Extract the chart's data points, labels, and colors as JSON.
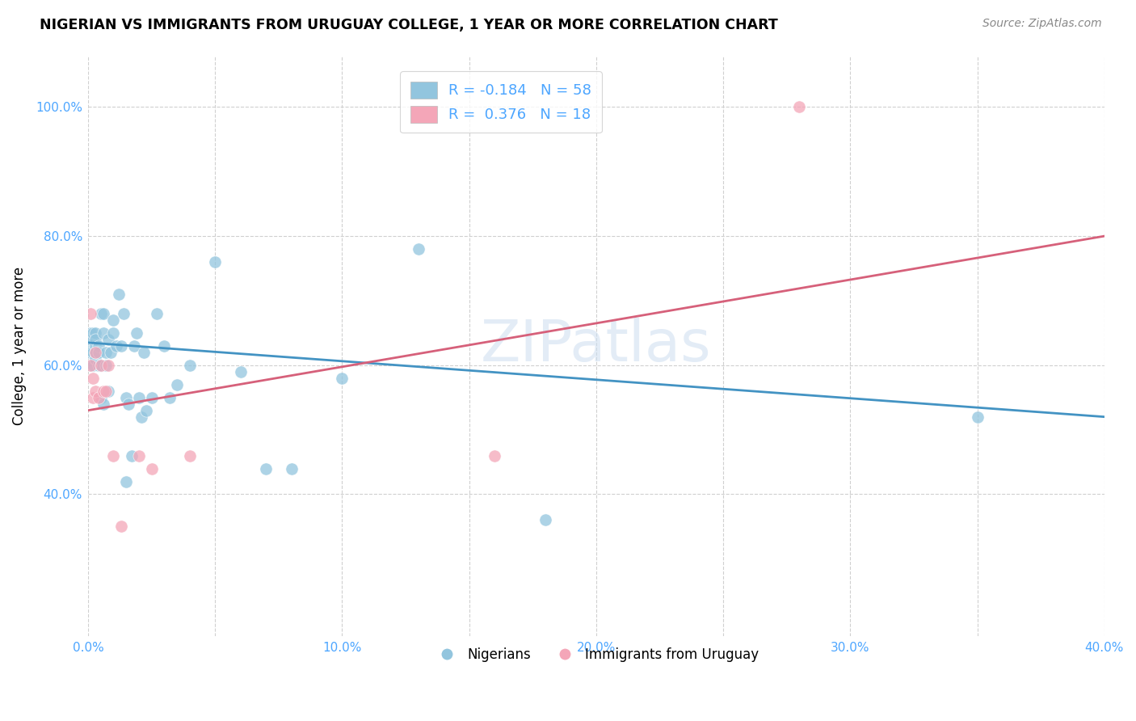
{
  "title": "NIGERIAN VS IMMIGRANTS FROM URUGUAY COLLEGE, 1 YEAR OR MORE CORRELATION CHART",
  "source": "Source: ZipAtlas.com",
  "ylabel": "College, 1 year or more",
  "xlim": [
    0.0,
    0.4
  ],
  "ylim": [
    0.18,
    1.08
  ],
  "xtick_labels": [
    "0.0%",
    "",
    "10.0%",
    "",
    "20.0%",
    "",
    "30.0%",
    "",
    "40.0%"
  ],
  "xtick_vals": [
    0.0,
    0.05,
    0.1,
    0.15,
    0.2,
    0.25,
    0.3,
    0.35,
    0.4
  ],
  "ytick_labels": [
    "40.0%",
    "60.0%",
    "80.0%",
    "100.0%"
  ],
  "ytick_vals": [
    0.4,
    0.6,
    0.8,
    1.0
  ],
  "blue_color": "#92c5de",
  "pink_color": "#f4a6b8",
  "blue_line_color": "#4393c3",
  "pink_line_color": "#d6607a",
  "legend_r_blue": "-0.184",
  "legend_n_blue": "58",
  "legend_r_pink": "0.376",
  "legend_n_pink": "18",
  "nigerians_x": [
    0.001,
    0.001,
    0.001,
    0.001,
    0.001,
    0.002,
    0.002,
    0.002,
    0.002,
    0.003,
    0.003,
    0.003,
    0.003,
    0.003,
    0.004,
    0.004,
    0.004,
    0.005,
    0.005,
    0.005,
    0.006,
    0.006,
    0.006,
    0.007,
    0.007,
    0.008,
    0.008,
    0.009,
    0.01,
    0.01,
    0.011,
    0.012,
    0.013,
    0.014,
    0.015,
    0.015,
    0.016,
    0.017,
    0.018,
    0.019,
    0.02,
    0.021,
    0.022,
    0.023,
    0.025,
    0.027,
    0.03,
    0.032,
    0.035,
    0.04,
    0.05,
    0.06,
    0.07,
    0.08,
    0.1,
    0.13,
    0.18,
    0.35
  ],
  "nigerians_y": [
    0.63,
    0.65,
    0.62,
    0.64,
    0.6,
    0.64,
    0.62,
    0.65,
    0.6,
    0.63,
    0.61,
    0.65,
    0.62,
    0.64,
    0.63,
    0.6,
    0.62,
    0.55,
    0.68,
    0.6,
    0.54,
    0.68,
    0.65,
    0.62,
    0.6,
    0.64,
    0.56,
    0.62,
    0.65,
    0.67,
    0.63,
    0.71,
    0.63,
    0.68,
    0.55,
    0.42,
    0.54,
    0.46,
    0.63,
    0.65,
    0.55,
    0.52,
    0.62,
    0.53,
    0.55,
    0.68,
    0.63,
    0.55,
    0.57,
    0.6,
    0.76,
    0.59,
    0.44,
    0.44,
    0.58,
    0.78,
    0.36,
    0.52
  ],
  "uruguay_x": [
    0.001,
    0.001,
    0.002,
    0.002,
    0.003,
    0.003,
    0.004,
    0.005,
    0.006,
    0.007,
    0.008,
    0.01,
    0.013,
    0.02,
    0.025,
    0.04,
    0.16,
    0.28
  ],
  "uruguay_y": [
    0.68,
    0.6,
    0.55,
    0.58,
    0.62,
    0.56,
    0.55,
    0.6,
    0.56,
    0.56,
    0.6,
    0.46,
    0.35,
    0.46,
    0.44,
    0.46,
    0.46,
    1.0
  ]
}
